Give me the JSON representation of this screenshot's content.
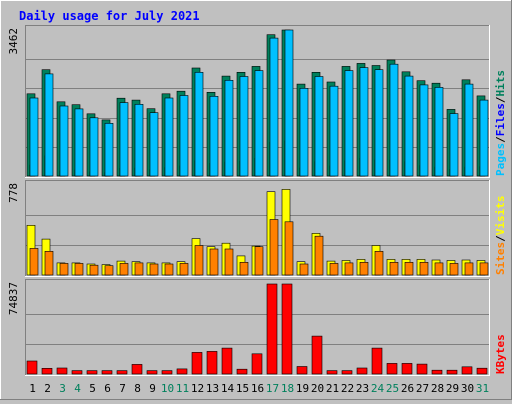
{
  "title": "Daily usage for July 2021",
  "colors": {
    "background": "#c0c0c0",
    "title": "#0000ff",
    "hits": "#00805c",
    "files": "#0000ff",
    "pages": "#00c0ff",
    "visits": "#ffff00",
    "sites": "#ff8000",
    "kbytes": "#ff0000",
    "weekend_day": "#00805c",
    "weekday": "#000000"
  },
  "chart_data": {
    "type": "bar",
    "title": "Daily usage for July 2021",
    "categories": [
      "1",
      "2",
      "3",
      "4",
      "5",
      "6",
      "7",
      "8",
      "9",
      "10",
      "11",
      "12",
      "13",
      "14",
      "15",
      "16",
      "17",
      "18",
      "19",
      "20",
      "21",
      "22",
      "23",
      "24",
      "25",
      "26",
      "27",
      "28",
      "29",
      "30",
      "31"
    ],
    "weekend_days": [
      "3",
      "4",
      "10",
      "11",
      "17",
      "18",
      "24",
      "25",
      "31"
    ],
    "panels": [
      {
        "id": "hits-files-pages",
        "max_label": "3462",
        "ylim": [
          0,
          3462
        ],
        "legend": [
          {
            "text": "Pages",
            "color": "#00c0ff"
          },
          {
            "text": "Files",
            "color": "#0000ff"
          },
          {
            "text": "Hits",
            "color": "#00805c"
          }
        ],
        "series": [
          {
            "name": "Hits",
            "color": "#00805c",
            "values": [
              1950,
              2520,
              1760,
              1690,
              1475,
              1330,
              1845,
              1800,
              1595,
              1950,
              2010,
              2560,
              1985,
              2370,
              2460,
              2600,
              3350,
              3462,
              2180,
              2460,
              2230,
              2600,
              2670,
              2620,
              2750,
              2470,
              2260,
              2200,
              1580,
              2280,
              1900
            ]
          },
          {
            "name": "Files",
            "color": "#0000ff",
            "values": [
              260,
              480,
              120,
              140,
              100,
              80,
              180,
              190,
              150,
              200,
              240,
              360,
              300,
              330,
              350,
              420,
              800,
              830,
              190,
              340,
              240,
              360,
              420,
              380,
              380,
              340,
              250,
              210,
              160,
              210,
              220
            ]
          },
          {
            "name": "Pages",
            "color": "#00c0ff",
            "values": [
              1850,
              2420,
              1660,
              1590,
              1380,
              1250,
              1740,
              1700,
              1500,
              1850,
              1910,
              2460,
              1890,
              2270,
              2360,
              2500,
              3270,
              3462,
              2080,
              2360,
              2130,
              2500,
              2570,
              2520,
              2650,
              2370,
              2160,
              2100,
              1480,
              2180,
              1800
            ]
          }
        ]
      },
      {
        "id": "sites-visits",
        "max_label": "778",
        "ylim": [
          0,
          778
        ],
        "legend": [
          {
            "text": "Sites",
            "color": "#ff8000"
          },
          {
            "text": "Visits",
            "color": "#ffff00"
          }
        ],
        "series": [
          {
            "name": "Visits",
            "color": "#ffff00",
            "values": [
              430,
              310,
              105,
              105,
              95,
              90,
              120,
              115,
              105,
              105,
              115,
              315,
              245,
              275,
              165,
              250,
              720,
              740,
              115,
              360,
              120,
              125,
              135,
              255,
              135,
              135,
              135,
              130,
              125,
              130,
              125
            ]
          },
          {
            "name": "Sites",
            "color": "#ff8000",
            "values": [
              230,
              205,
              100,
              100,
              85,
              80,
              100,
              105,
              95,
              95,
              100,
              255,
              225,
              225,
              110,
              245,
              480,
              460,
              95,
              335,
              100,
              105,
              110,
              205,
              110,
              110,
              110,
              105,
              100,
              105,
              105
            ]
          }
        ]
      },
      {
        "id": "kbytes",
        "max_label": "74837",
        "ylim": [
          0,
          74837
        ],
        "legend": [
          {
            "text": "KBytes",
            "color": "#ff0000"
          }
        ],
        "series": [
          {
            "name": "KBytes",
            "color": "#ff0000",
            "values": [
              10800,
              4700,
              5000,
              2800,
              2800,
              2800,
              2800,
              8000,
              2800,
              2800,
              4200,
              18000,
              18800,
              21500,
              4000,
              16800,
              74837,
              74837,
              6200,
              31500,
              2800,
              2800,
              5000,
              21500,
              8800,
              8800,
              8200,
              3200,
              3200,
              6000,
              4800
            ]
          }
        ]
      }
    ]
  }
}
